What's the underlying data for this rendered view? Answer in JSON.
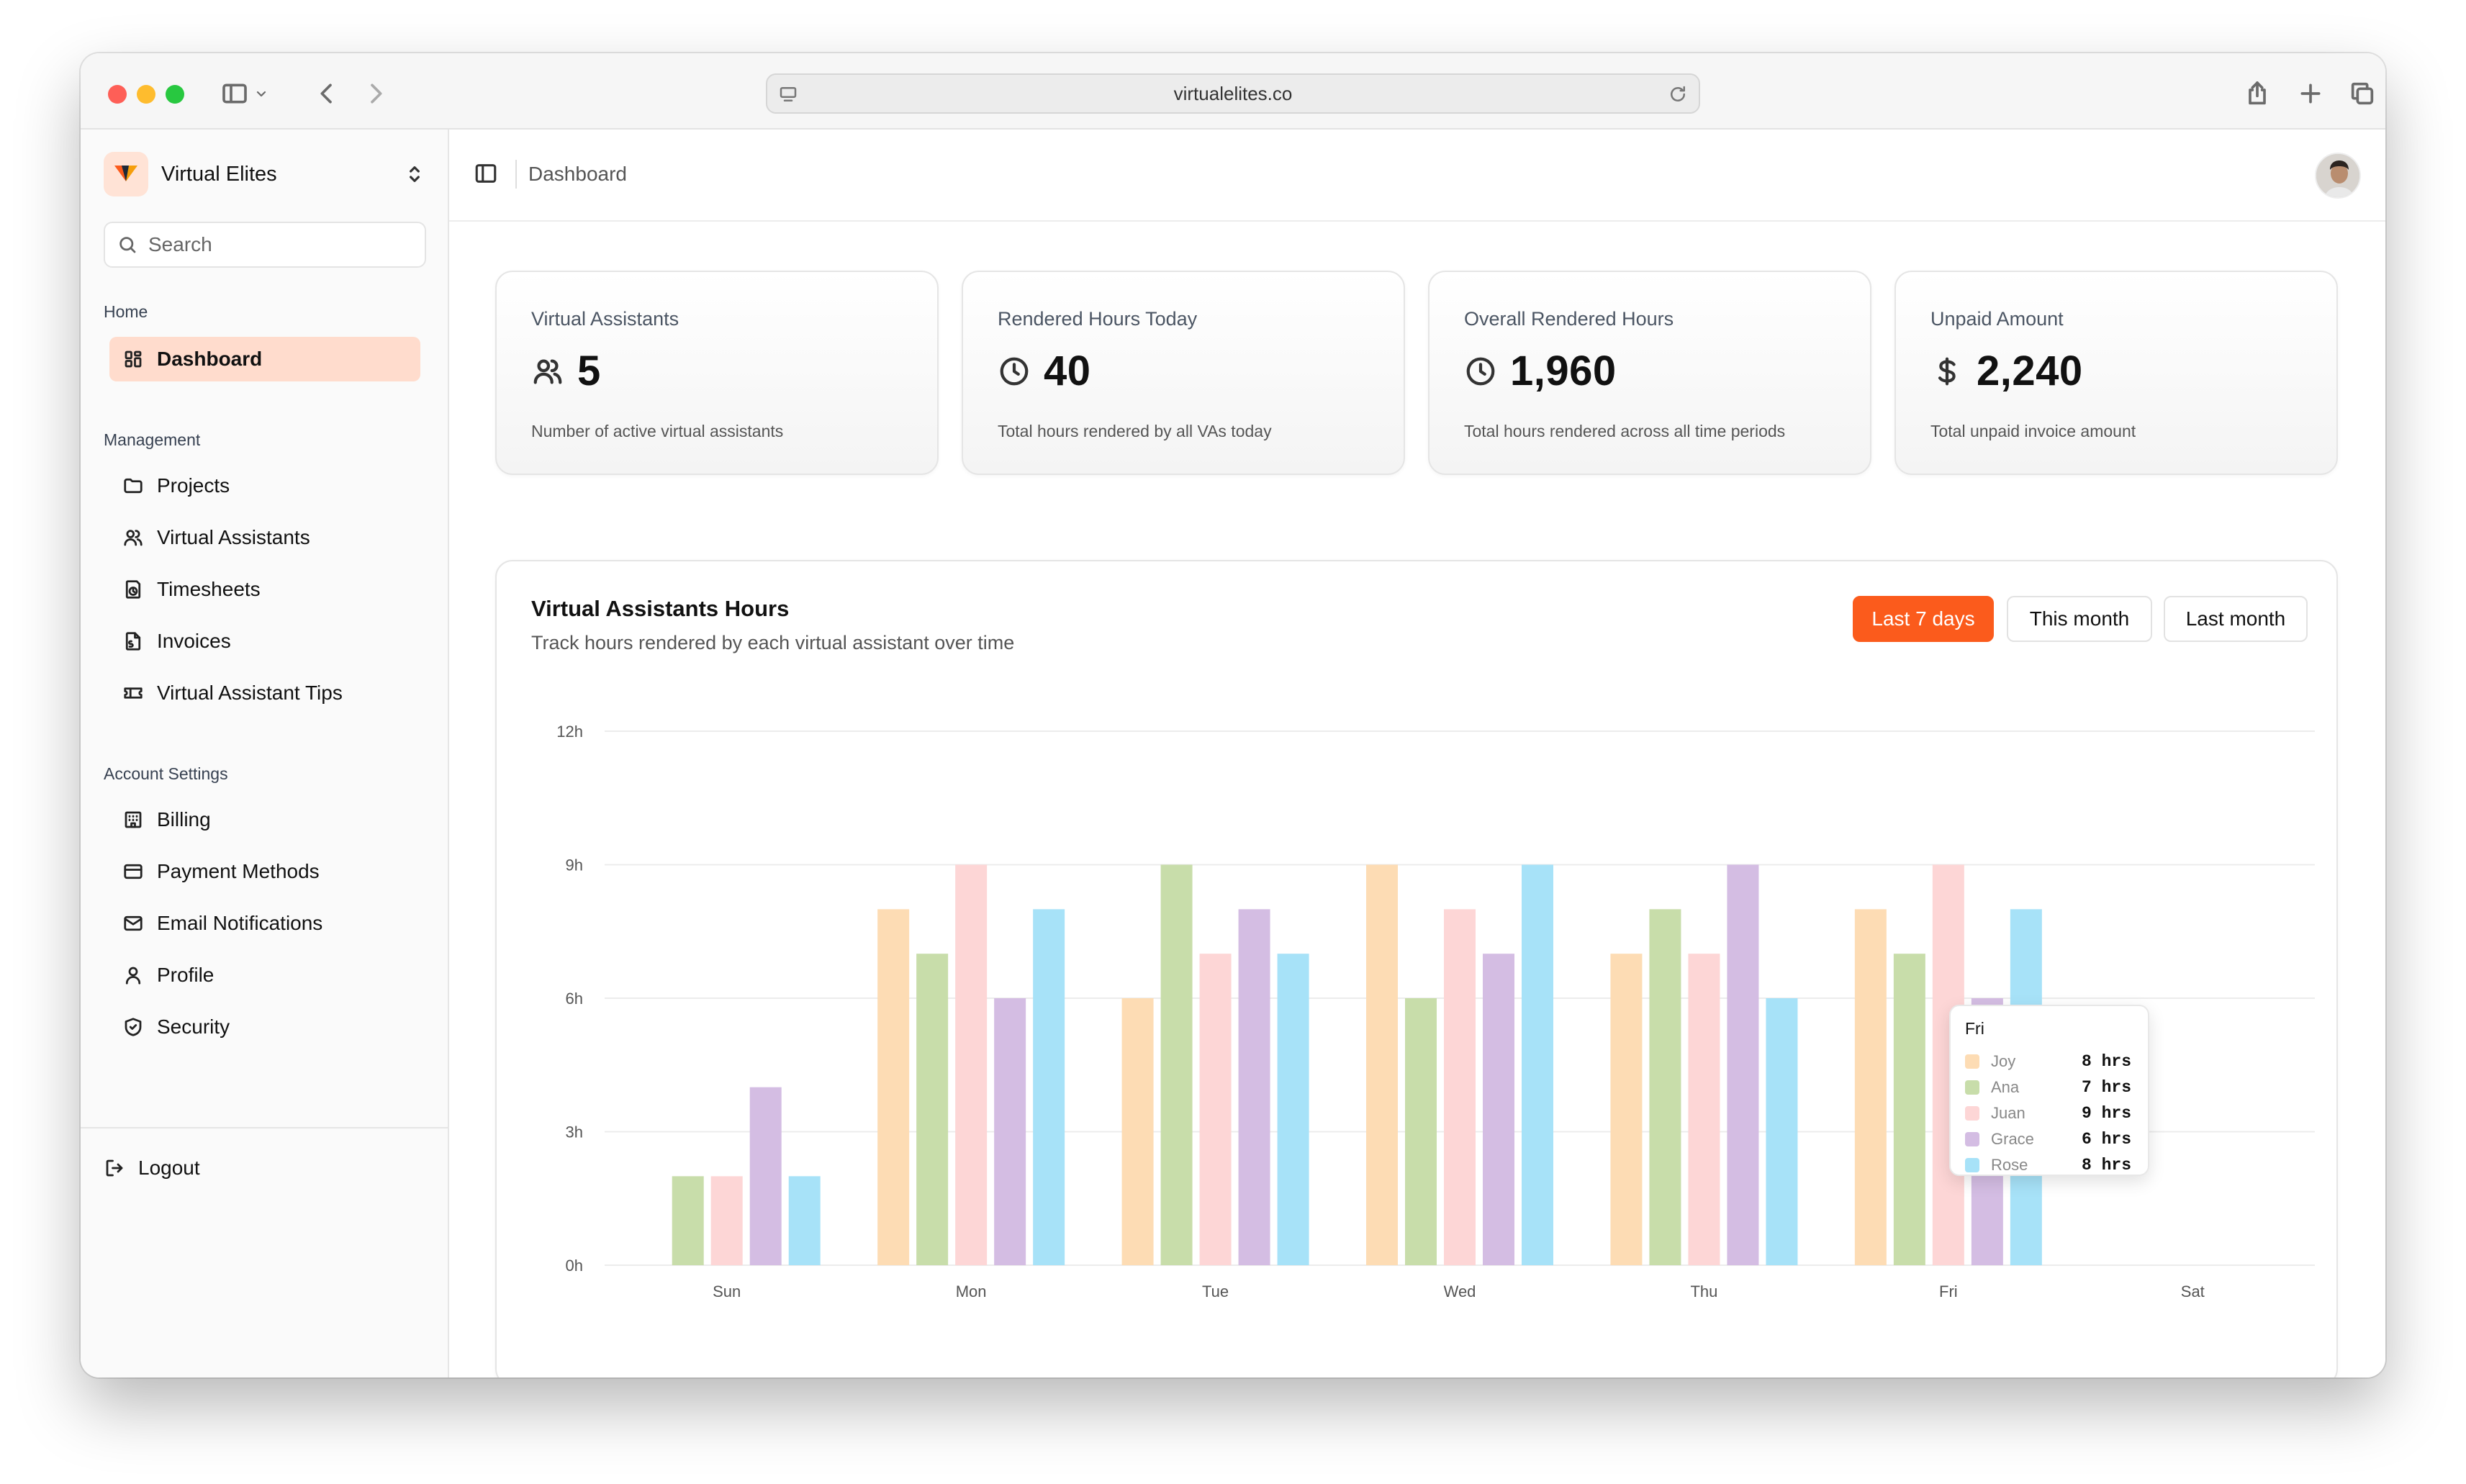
{
  "browser": {
    "url": "virtualelites.co"
  },
  "sidebar": {
    "brand_name": "Virtual Elites",
    "search_placeholder": "Search",
    "sections": {
      "home": "Home",
      "management": "Management",
      "account": "Account Settings"
    },
    "items": {
      "dashboard": "Dashboard",
      "projects": "Projects",
      "virtual_assistants": "Virtual Assistants",
      "timesheets": "Timesheets",
      "invoices": "Invoices",
      "tips": "Virtual Assistant Tips",
      "billing": "Billing",
      "payment_methods": "Payment Methods",
      "email_notifications": "Email Notifications",
      "profile": "Profile",
      "security": "Security"
    },
    "logout": "Logout"
  },
  "header": {
    "breadcrumb": "Dashboard"
  },
  "stats": [
    {
      "title": "Virtual Assistants",
      "value": "5",
      "desc": "Number of active virtual assistants",
      "icon": "users-icon"
    },
    {
      "title": "Rendered Hours Today",
      "value": "40",
      "desc": "Total hours rendered by all VAs today",
      "icon": "clock-icon"
    },
    {
      "title": "Overall Rendered Hours",
      "value": "1,960",
      "desc": "Total hours rendered across all time periods",
      "icon": "clock-icon"
    },
    {
      "title": "Unpaid Amount",
      "value": "2,240",
      "desc": "Total unpaid invoice amount",
      "icon": "dollar-icon"
    }
  ],
  "chart_card": {
    "title": "Virtual Assistants Hours",
    "subtitle": "Track hours rendered by each virtual assistant over time",
    "ranges": [
      "Last 7 days",
      "This month",
      "Last month"
    ],
    "active_range": "Last 7 days"
  },
  "chart_data": {
    "type": "bar",
    "categories": [
      "Sun",
      "Mon",
      "Tue",
      "Wed",
      "Thu",
      "Fri",
      "Sat"
    ],
    "y_ticks": [
      "0h",
      "3h",
      "6h",
      "9h",
      "12h"
    ],
    "ylim": [
      0,
      12
    ],
    "grid": true,
    "series": [
      {
        "name": "Joy",
        "color": "#fddcb4",
        "values": [
          0,
          8,
          6,
          9,
          7,
          8,
          0
        ]
      },
      {
        "name": "Ana",
        "color": "#c8ddaa",
        "values": [
          2,
          7,
          9,
          6,
          8,
          7,
          0
        ]
      },
      {
        "name": "Juan",
        "color": "#fdd6d6",
        "values": [
          2,
          9,
          7,
          8,
          7,
          9,
          0
        ]
      },
      {
        "name": "Grace",
        "color": "#d4bde3",
        "values": [
          4,
          6,
          8,
          7,
          9,
          6,
          0
        ]
      },
      {
        "name": "Rose",
        "color": "#a7e2f8",
        "values": [
          2,
          8,
          7,
          9,
          6,
          8,
          0
        ]
      }
    ]
  },
  "tooltip": {
    "title": "Fri",
    "rows": [
      {
        "name": "Joy",
        "value": "8 hrs",
        "color": "#fddcb4"
      },
      {
        "name": "Ana",
        "value": "7 hrs",
        "color": "#c8ddaa"
      },
      {
        "name": "Juan",
        "value": "9 hrs",
        "color": "#fdd6d6"
      },
      {
        "name": "Grace",
        "value": "6 hrs",
        "color": "#d4bde3"
      },
      {
        "name": "Rose",
        "value": "8 hrs",
        "color": "#a7e2f8"
      }
    ]
  }
}
